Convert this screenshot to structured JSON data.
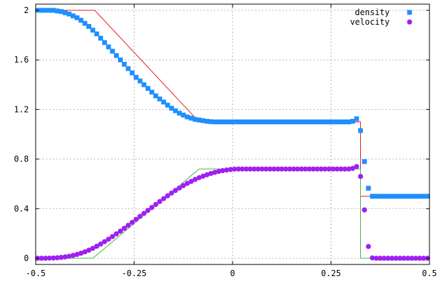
{
  "chart_data": {
    "type": "scatter",
    "xlim": [
      -0.5,
      0.5
    ],
    "ylim": [
      -0.05,
      2.05
    ],
    "x_ticks": [
      {
        "value": -0.5,
        "label": "-0.5"
      },
      {
        "value": -0.25,
        "label": "-0.25"
      },
      {
        "value": 0,
        "label": "0"
      },
      {
        "value": 0.25,
        "label": "0.25"
      },
      {
        "value": 0.5,
        "label": "0.5"
      }
    ],
    "y_ticks": [
      {
        "value": 0,
        "label": "0"
      },
      {
        "value": 0.4,
        "label": "0.4"
      },
      {
        "value": 0.8,
        "label": "0.8"
      },
      {
        "value": 1.2,
        "label": "1.2"
      },
      {
        "value": 1.6,
        "label": "1.6"
      },
      {
        "value": 2,
        "label": "2"
      }
    ],
    "grid": true,
    "legend_position": "top-right",
    "series": [
      {
        "name": "density",
        "kind": "points",
        "marker": "square",
        "color": "#1f8fff",
        "points": [
          [
            -0.495,
            2.0
          ],
          [
            -0.485,
            2.0
          ],
          [
            -0.475,
            2.0
          ],
          [
            -0.465,
            2.0
          ],
          [
            -0.455,
            2.0
          ],
          [
            -0.445,
            1.995
          ],
          [
            -0.435,
            1.99
          ],
          [
            -0.425,
            1.98
          ],
          [
            -0.415,
            1.97
          ],
          [
            -0.405,
            1.955
          ],
          [
            -0.395,
            1.94
          ],
          [
            -0.385,
            1.92
          ],
          [
            -0.375,
            1.895
          ],
          [
            -0.365,
            1.87
          ],
          [
            -0.355,
            1.84
          ],
          [
            -0.345,
            1.81
          ],
          [
            -0.335,
            1.775
          ],
          [
            -0.325,
            1.74
          ],
          [
            -0.315,
            1.705
          ],
          [
            -0.305,
            1.67
          ],
          [
            -0.295,
            1.635
          ],
          [
            -0.285,
            1.6
          ],
          [
            -0.275,
            1.565
          ],
          [
            -0.265,
            1.53
          ],
          [
            -0.255,
            1.495
          ],
          [
            -0.245,
            1.46
          ],
          [
            -0.235,
            1.43
          ],
          [
            -0.225,
            1.4
          ],
          [
            -0.215,
            1.37
          ],
          [
            -0.205,
            1.34
          ],
          [
            -0.195,
            1.31
          ],
          [
            -0.185,
            1.285
          ],
          [
            -0.175,
            1.26
          ],
          [
            -0.165,
            1.235
          ],
          [
            -0.155,
            1.21
          ],
          [
            -0.145,
            1.19
          ],
          [
            -0.135,
            1.17
          ],
          [
            -0.125,
            1.155
          ],
          [
            -0.115,
            1.14
          ],
          [
            -0.105,
            1.13
          ],
          [
            -0.095,
            1.12
          ],
          [
            -0.085,
            1.115
          ],
          [
            -0.075,
            1.11
          ],
          [
            -0.065,
            1.105
          ],
          [
            -0.055,
            1.102
          ],
          [
            -0.045,
            1.1
          ],
          [
            -0.035,
            1.1
          ],
          [
            -0.025,
            1.1
          ],
          [
            -0.015,
            1.1
          ],
          [
            -0.005,
            1.1
          ],
          [
            0.005,
            1.1
          ],
          [
            0.015,
            1.1
          ],
          [
            0.025,
            1.1
          ],
          [
            0.035,
            1.1
          ],
          [
            0.045,
            1.1
          ],
          [
            0.055,
            1.1
          ],
          [
            0.065,
            1.1
          ],
          [
            0.075,
            1.1
          ],
          [
            0.085,
            1.1
          ],
          [
            0.095,
            1.1
          ],
          [
            0.105,
            1.1
          ],
          [
            0.115,
            1.1
          ],
          [
            0.125,
            1.1
          ],
          [
            0.135,
            1.1
          ],
          [
            0.145,
            1.1
          ],
          [
            0.155,
            1.1
          ],
          [
            0.165,
            1.1
          ],
          [
            0.175,
            1.1
          ],
          [
            0.185,
            1.1
          ],
          [
            0.195,
            1.1
          ],
          [
            0.205,
            1.1
          ],
          [
            0.215,
            1.1
          ],
          [
            0.225,
            1.1
          ],
          [
            0.235,
            1.1
          ],
          [
            0.245,
            1.1
          ],
          [
            0.255,
            1.1
          ],
          [
            0.265,
            1.1
          ],
          [
            0.275,
            1.1
          ],
          [
            0.285,
            1.1
          ],
          [
            0.295,
            1.1
          ],
          [
            0.305,
            1.105
          ],
          [
            0.315,
            1.125
          ],
          [
            0.325,
            1.03
          ],
          [
            0.335,
            0.78
          ],
          [
            0.345,
            0.565
          ],
          [
            0.355,
            0.5
          ],
          [
            0.365,
            0.5
          ],
          [
            0.375,
            0.5
          ],
          [
            0.385,
            0.5
          ],
          [
            0.395,
            0.5
          ],
          [
            0.405,
            0.5
          ],
          [
            0.415,
            0.5
          ],
          [
            0.425,
            0.5
          ],
          [
            0.435,
            0.5
          ],
          [
            0.445,
            0.5
          ],
          [
            0.455,
            0.5
          ],
          [
            0.465,
            0.5
          ],
          [
            0.475,
            0.5
          ],
          [
            0.485,
            0.5
          ],
          [
            0.495,
            0.5
          ]
        ]
      },
      {
        "name": "velocity",
        "kind": "points",
        "marker": "circle",
        "color": "#a020f0",
        "points": [
          [
            -0.495,
            0.0
          ],
          [
            -0.485,
            0.0
          ],
          [
            -0.475,
            0.0
          ],
          [
            -0.465,
            0.001
          ],
          [
            -0.455,
            0.002
          ],
          [
            -0.445,
            0.004
          ],
          [
            -0.435,
            0.007
          ],
          [
            -0.425,
            0.011
          ],
          [
            -0.415,
            0.016
          ],
          [
            -0.405,
            0.023
          ],
          [
            -0.395,
            0.031
          ],
          [
            -0.385,
            0.041
          ],
          [
            -0.375,
            0.052
          ],
          [
            -0.365,
            0.065
          ],
          [
            -0.355,
            0.08
          ],
          [
            -0.345,
            0.097
          ],
          [
            -0.335,
            0.115
          ],
          [
            -0.325,
            0.134
          ],
          [
            -0.315,
            0.154
          ],
          [
            -0.305,
            0.175
          ],
          [
            -0.295,
            0.197
          ],
          [
            -0.285,
            0.219
          ],
          [
            -0.275,
            0.242
          ],
          [
            -0.265,
            0.266
          ],
          [
            -0.255,
            0.29
          ],
          [
            -0.245,
            0.314
          ],
          [
            -0.235,
            0.338
          ],
          [
            -0.225,
            0.362
          ],
          [
            -0.215,
            0.386
          ],
          [
            -0.205,
            0.41
          ],
          [
            -0.195,
            0.434
          ],
          [
            -0.185,
            0.458
          ],
          [
            -0.175,
            0.481
          ],
          [
            -0.165,
            0.504
          ],
          [
            -0.155,
            0.526
          ],
          [
            -0.145,
            0.547
          ],
          [
            -0.135,
            0.567
          ],
          [
            -0.125,
            0.586
          ],
          [
            -0.115,
            0.604
          ],
          [
            -0.105,
            0.62
          ],
          [
            -0.095,
            0.636
          ],
          [
            -0.085,
            0.65
          ],
          [
            -0.075,
            0.662
          ],
          [
            -0.065,
            0.674
          ],
          [
            -0.055,
            0.684
          ],
          [
            -0.045,
            0.693
          ],
          [
            -0.035,
            0.701
          ],
          [
            -0.025,
            0.707
          ],
          [
            -0.015,
            0.712
          ],
          [
            -0.005,
            0.716
          ],
          [
            0.005,
            0.719
          ],
          [
            0.015,
            0.72
          ],
          [
            0.025,
            0.72
          ],
          [
            0.035,
            0.72
          ],
          [
            0.045,
            0.72
          ],
          [
            0.055,
            0.72
          ],
          [
            0.065,
            0.72
          ],
          [
            0.075,
            0.72
          ],
          [
            0.085,
            0.72
          ],
          [
            0.095,
            0.72
          ],
          [
            0.105,
            0.72
          ],
          [
            0.115,
            0.72
          ],
          [
            0.125,
            0.72
          ],
          [
            0.135,
            0.72
          ],
          [
            0.145,
            0.72
          ],
          [
            0.155,
            0.72
          ],
          [
            0.165,
            0.72
          ],
          [
            0.175,
            0.72
          ],
          [
            0.185,
            0.72
          ],
          [
            0.195,
            0.72
          ],
          [
            0.205,
            0.72
          ],
          [
            0.215,
            0.72
          ],
          [
            0.225,
            0.72
          ],
          [
            0.235,
            0.72
          ],
          [
            0.245,
            0.72
          ],
          [
            0.255,
            0.72
          ],
          [
            0.265,
            0.72
          ],
          [
            0.275,
            0.72
          ],
          [
            0.285,
            0.72
          ],
          [
            0.295,
            0.72
          ],
          [
            0.305,
            0.725
          ],
          [
            0.315,
            0.74
          ],
          [
            0.325,
            0.66
          ],
          [
            0.335,
            0.39
          ],
          [
            0.345,
            0.095
          ],
          [
            0.355,
            0.003
          ],
          [
            0.365,
            0.0
          ],
          [
            0.375,
            0.0
          ],
          [
            0.385,
            0.0
          ],
          [
            0.395,
            0.0
          ],
          [
            0.405,
            0.0
          ],
          [
            0.415,
            0.0
          ],
          [
            0.425,
            0.0
          ],
          [
            0.435,
            0.0
          ],
          [
            0.445,
            0.0
          ],
          [
            0.455,
            0.0
          ],
          [
            0.465,
            0.0
          ],
          [
            0.475,
            0.0
          ],
          [
            0.485,
            0.0
          ],
          [
            0.495,
            0.0
          ]
        ]
      },
      {
        "kind": "line",
        "color": "#e41a1c",
        "points": [
          [
            -0.5,
            2.0
          ],
          [
            -0.35,
            2.0
          ],
          [
            -0.085,
            1.1
          ],
          [
            0.325,
            1.1
          ],
          [
            0.325,
            0.5
          ],
          [
            0.5,
            0.5
          ]
        ]
      },
      {
        "kind": "line",
        "color": "#3cb44b",
        "points": [
          [
            -0.5,
            0.0
          ],
          [
            -0.355,
            0.0
          ],
          [
            -0.085,
            0.72
          ],
          [
            0.325,
            0.72
          ],
          [
            0.325,
            0.0
          ],
          [
            0.5,
            0.0
          ]
        ]
      }
    ]
  }
}
